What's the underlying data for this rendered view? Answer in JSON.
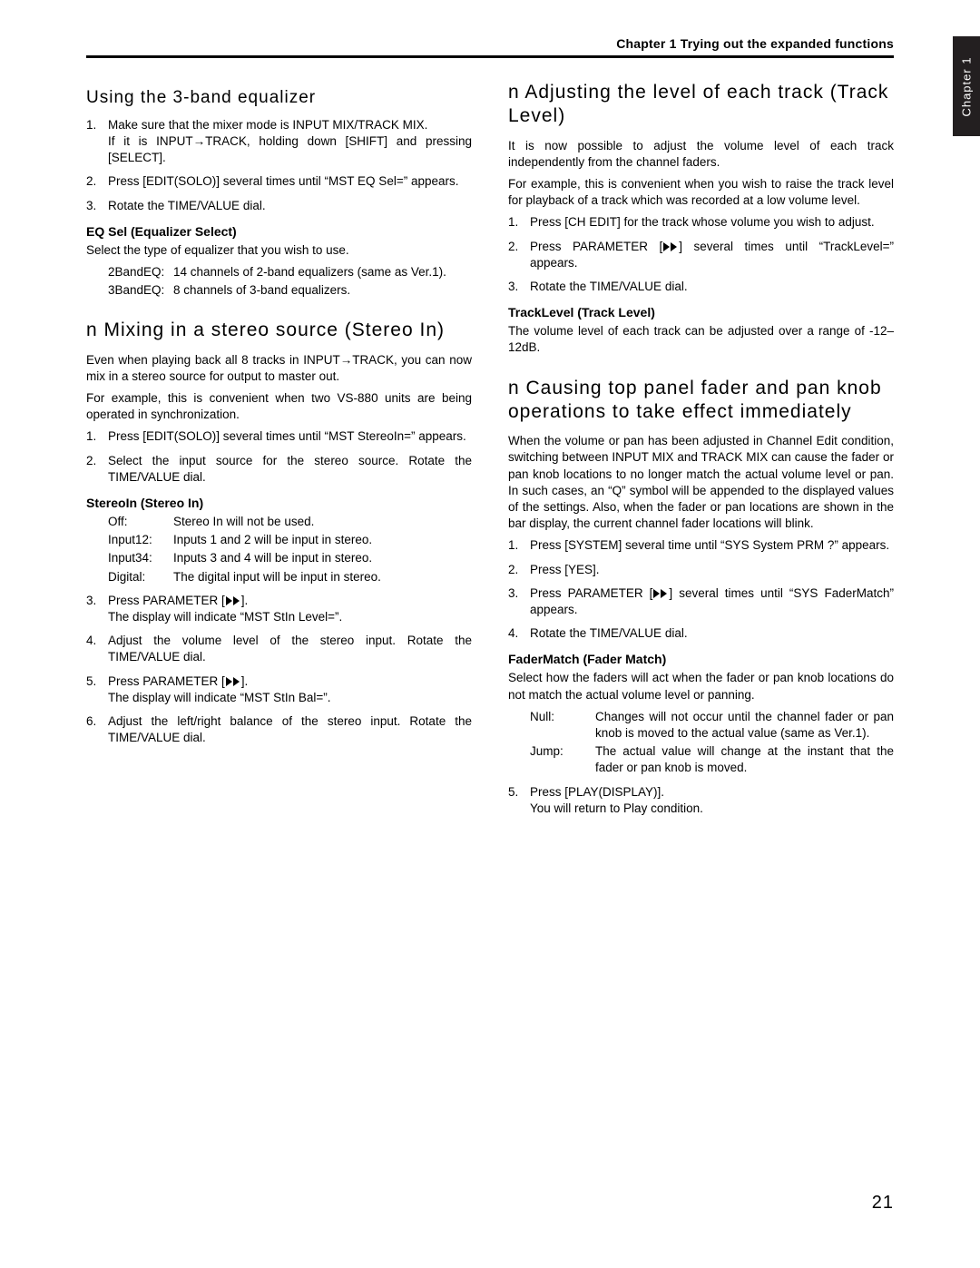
{
  "header": "Chapter 1  Trying out the expanded functions",
  "tab": "Chapter 1",
  "page_number": "21",
  "left": {
    "eq": {
      "title": "Using the 3-band equalizer",
      "steps": [
        "Make sure that the mixer mode is INPUT MIX/TRACK MIX.\nIf it is INPUT→TRACK, holding down [SHIFT] and pressing [SELECT].",
        "Press [EDIT(SOLO)] several times until “MST EQ Sel=” appears.",
        "Rotate the TIME/VALUE dial."
      ],
      "sub_title": "EQ Sel (Equalizer Select)",
      "sub_desc": "Select the type of equalizer that you wish to use.",
      "defs": [
        {
          "k": "2BandEQ:",
          "v": "14 channels of 2-band equalizers (same as Ver.1)."
        },
        {
          "k": "3BandEQ:",
          "v": "8 channels of 3-band equalizers."
        }
      ]
    },
    "stereo": {
      "title": "n Mixing in a stereo source (Stereo In)",
      "intro1": "Even when playing back all 8 tracks in INPUT→TRACK, you can now mix in a stereo source for output to master out.",
      "intro2": "For example, this is convenient when two VS-880 units are being operated in synchronization.",
      "steps_a": [
        "Press [EDIT(SOLO)] several times until “MST StereoIn=” appears.",
        "Select the input source for the stereo source. Rotate the TIME/VALUE dial."
      ],
      "sub_title": "StereoIn (Stereo In)",
      "defs": [
        {
          "k": "Off:",
          "v": "Stereo In will not be used."
        },
        {
          "k": "Input12:",
          "v": "Inputs 1 and 2 will be input in stereo."
        },
        {
          "k": "Input34:",
          "v": "Inputs 3 and 4 will be input in stereo."
        },
        {
          "k": "Digital:",
          "v": "The digital input will be input in stereo."
        }
      ],
      "step3_pre": "Press PARAMETER [",
      "step3_post": "].\nThe display will indicate “MST StIn Level=”.",
      "step4": "Adjust the volume level of the stereo input. Rotate the TIME/VALUE dial.",
      "step5_pre": "Press PARAMETER [",
      "step5_post": "].\nThe display will indicate “MST StIn Bal=”.",
      "step6": "Adjust the left/right balance of the stereo input. Rotate the TIME/VALUE dial."
    }
  },
  "right": {
    "track": {
      "title": "n Adjusting the level of each track (Track Level)",
      "intro1": "It is now possible to adjust the volume level of each track independently from the channel faders.",
      "intro2": "For example, this is convenient when you wish to raise the track level for playback of a track which was recorded at a low volume level.",
      "step1": "Press [CH EDIT] for the track whose volume you wish to adjust.",
      "step2_pre": "Press PARAMETER [",
      "step2_post": "] several times until “TrackLevel=” appears.",
      "step3": "Rotate the TIME/VALUE dial.",
      "sub_title": "TrackLevel (Track Level)",
      "sub_desc": "The volume level of each track can be adjusted over a range of -12–12dB."
    },
    "fader": {
      "title": "n Causing top panel fader and pan knob operations to take effect immediately",
      "intro": "When the volume or pan has been adjusted in Channel Edit condition, switching between INPUT MIX and TRACK MIX can cause the fader or pan knob locations to no longer match the actual volume level or pan. In such cases, an “Q” symbol will be appended to the displayed values of the settings. Also, when the fader or pan locations are shown in the bar display, the current channel fader locations will blink.",
      "step1": "Press [SYSTEM] several time until “SYS System PRM ?” appears.",
      "step2": "Press [YES].",
      "step3_pre": "Press PARAMETER [",
      "step3_post": "] several times until “SYS FaderMatch” appears.",
      "step4": "Rotate the TIME/VALUE dial.",
      "sub_title": "FaderMatch (Fader Match)",
      "sub_desc": "Select how the faders will act when the fader or pan knob locations do not match the actual volume level or panning.",
      "defs": [
        {
          "k": "Null:",
          "v": "Changes will not occur until the channel fader or pan knob is moved to the actual value (same as Ver.1)."
        },
        {
          "k": "Jump:",
          "v": "The actual value will change at the instant that the fader or pan knob is moved."
        }
      ],
      "step5": "Press [PLAY(DISPLAY)].\nYou will return to Play condition."
    }
  }
}
